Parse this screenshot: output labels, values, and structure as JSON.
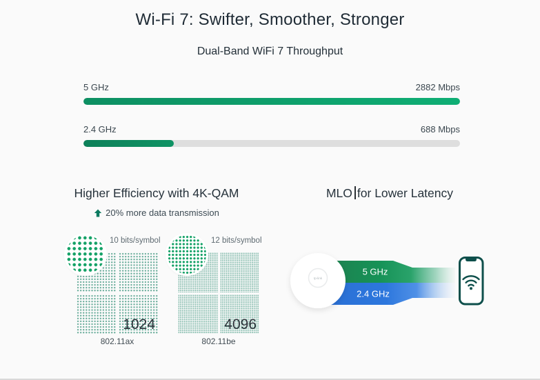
{
  "header": {
    "title": "Wi-Fi 7: Swifter, Smoother, Stronger",
    "subtitle": "Dual-Band WiFi 7 Throughput"
  },
  "throughput": {
    "bars": [
      {
        "label": "5 GHz",
        "value": "2882 Mbps",
        "fill_percent": 100
      },
      {
        "label": "2.4 GHz",
        "value": "688 Mbps",
        "fill_percent": 24
      }
    ]
  },
  "chart_data": {
    "type": "bar",
    "title": "Dual-Band WiFi 7 Throughput",
    "categories": [
      "5 GHz",
      "2.4 GHz"
    ],
    "values": [
      2882,
      688
    ],
    "unit": "Mbps",
    "xlim": [
      0,
      2882
    ],
    "orientation": "horizontal",
    "bar_color": "#0f9d68",
    "track_color": "#dedede"
  },
  "qam": {
    "heading": "Higher Efficiency with 4K-QAM",
    "note": "20% more data transmission",
    "figures": [
      {
        "bits_label": "10 bits/symbol",
        "count": "1024",
        "standard": "802.11ax"
      },
      {
        "bits_label": "12 bits/symbol",
        "count": "4096",
        "standard": "802.11be"
      }
    ]
  },
  "mlo": {
    "heading_part1": "MLO",
    "heading_part2": "for Lower Latency",
    "bands": [
      {
        "label": "5 GHz",
        "color": "#179257"
      },
      {
        "label": "2.4 GHz",
        "color": "#2d77dd"
      }
    ],
    "device_logo": "tp-link"
  },
  "colors": {
    "accent_green": "#0f9d68",
    "dark_green_fill": "#0d8059",
    "band_blue": "#2d77dd",
    "phone_teal": "#0e4f4b",
    "track_gray": "#dedede",
    "heading_text": "#26323b"
  }
}
